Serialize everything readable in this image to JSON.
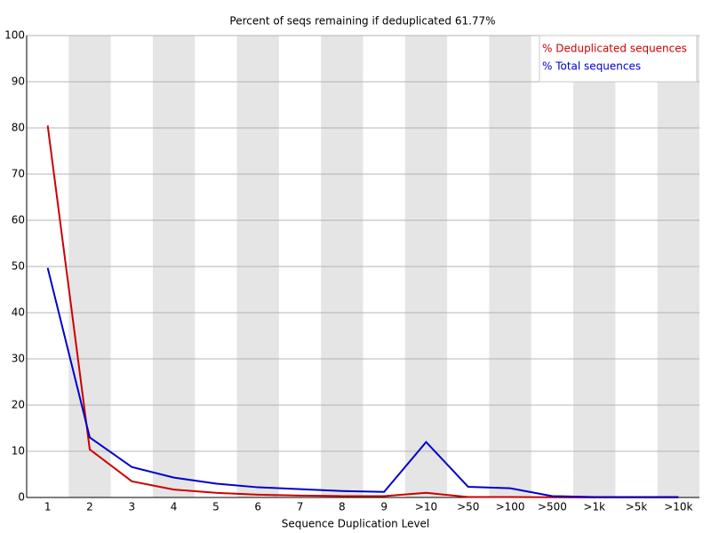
{
  "chart_data": {
    "type": "line",
    "title": "Percent of seqs remaining if deduplicated 61.77%",
    "x_label": "Sequence Duplication Level",
    "categories": [
      "1",
      "2",
      "3",
      "4",
      "5",
      "6",
      "7",
      "8",
      "9",
      ">10",
      ">50",
      ">100",
      ">500",
      ">1k",
      ">5k",
      ">10k"
    ],
    "series": [
      {
        "name": "% Deduplicated sequences",
        "color": "#cc0000",
        "values": [
          80.5,
          10.4,
          3.5,
          1.7,
          1.0,
          0.6,
          0.4,
          0.3,
          0.3,
          1.0,
          0.1,
          0.1,
          0.05,
          0,
          0,
          0
        ]
      },
      {
        "name": "% Total sequences",
        "color": "#0000cc",
        "values": [
          49.7,
          13.0,
          6.6,
          4.3,
          3.0,
          2.2,
          1.8,
          1.4,
          1.2,
          12.0,
          2.3,
          2.0,
          0.3,
          0.1,
          0.1,
          0.1
        ]
      }
    ],
    "ylim": [
      0,
      100
    ],
    "yticks": [
      0,
      10,
      20,
      30,
      40,
      50,
      60,
      70,
      80,
      90,
      100
    ],
    "grid": true,
    "legend": "upper right"
  }
}
